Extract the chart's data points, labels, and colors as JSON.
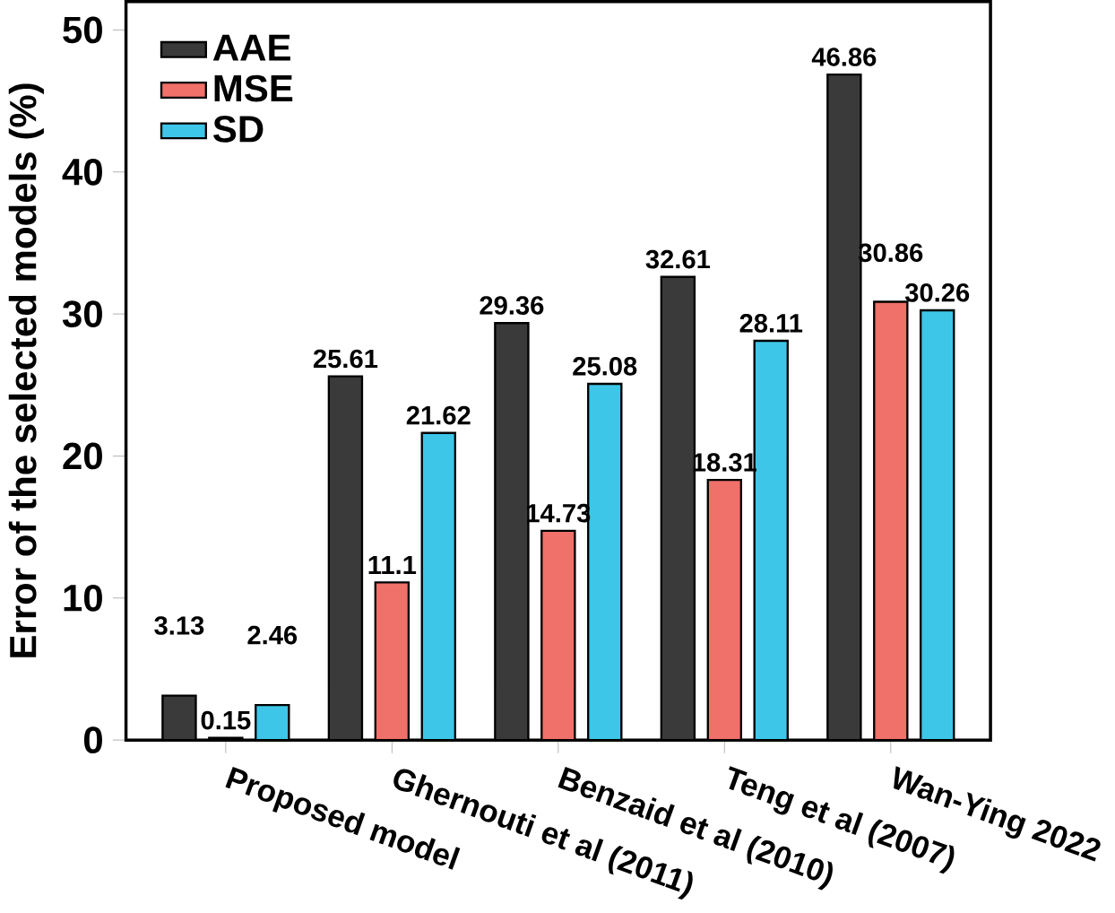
{
  "chart_data": {
    "type": "bar",
    "ylabel": "Error of the selected models (%)",
    "categories": [
      "Proposed model",
      "Ghernouti et al (2011)",
      "Benzaid et al (2010)",
      "Teng et al (2007)",
      "Wan-Ying 2022"
    ],
    "series": [
      {
        "name": "AAE",
        "color": "#3a3a3a",
        "values": [
          3.13,
          25.61,
          29.36,
          32.61,
          46.86
        ]
      },
      {
        "name": "MSE",
        "color": "#f0706a",
        "values": [
          0.15,
          11.1,
          14.73,
          18.31,
          30.86
        ]
      },
      {
        "name": "SD",
        "color": "#3ec6e8",
        "values": [
          2.46,
          21.62,
          25.08,
          28.11,
          30.26
        ]
      }
    ],
    "ylim": [
      0,
      52
    ],
    "yticks": [
      0,
      10,
      20,
      30,
      40,
      50
    ],
    "legend": "top left",
    "data_labels": true,
    "grid": false
  }
}
